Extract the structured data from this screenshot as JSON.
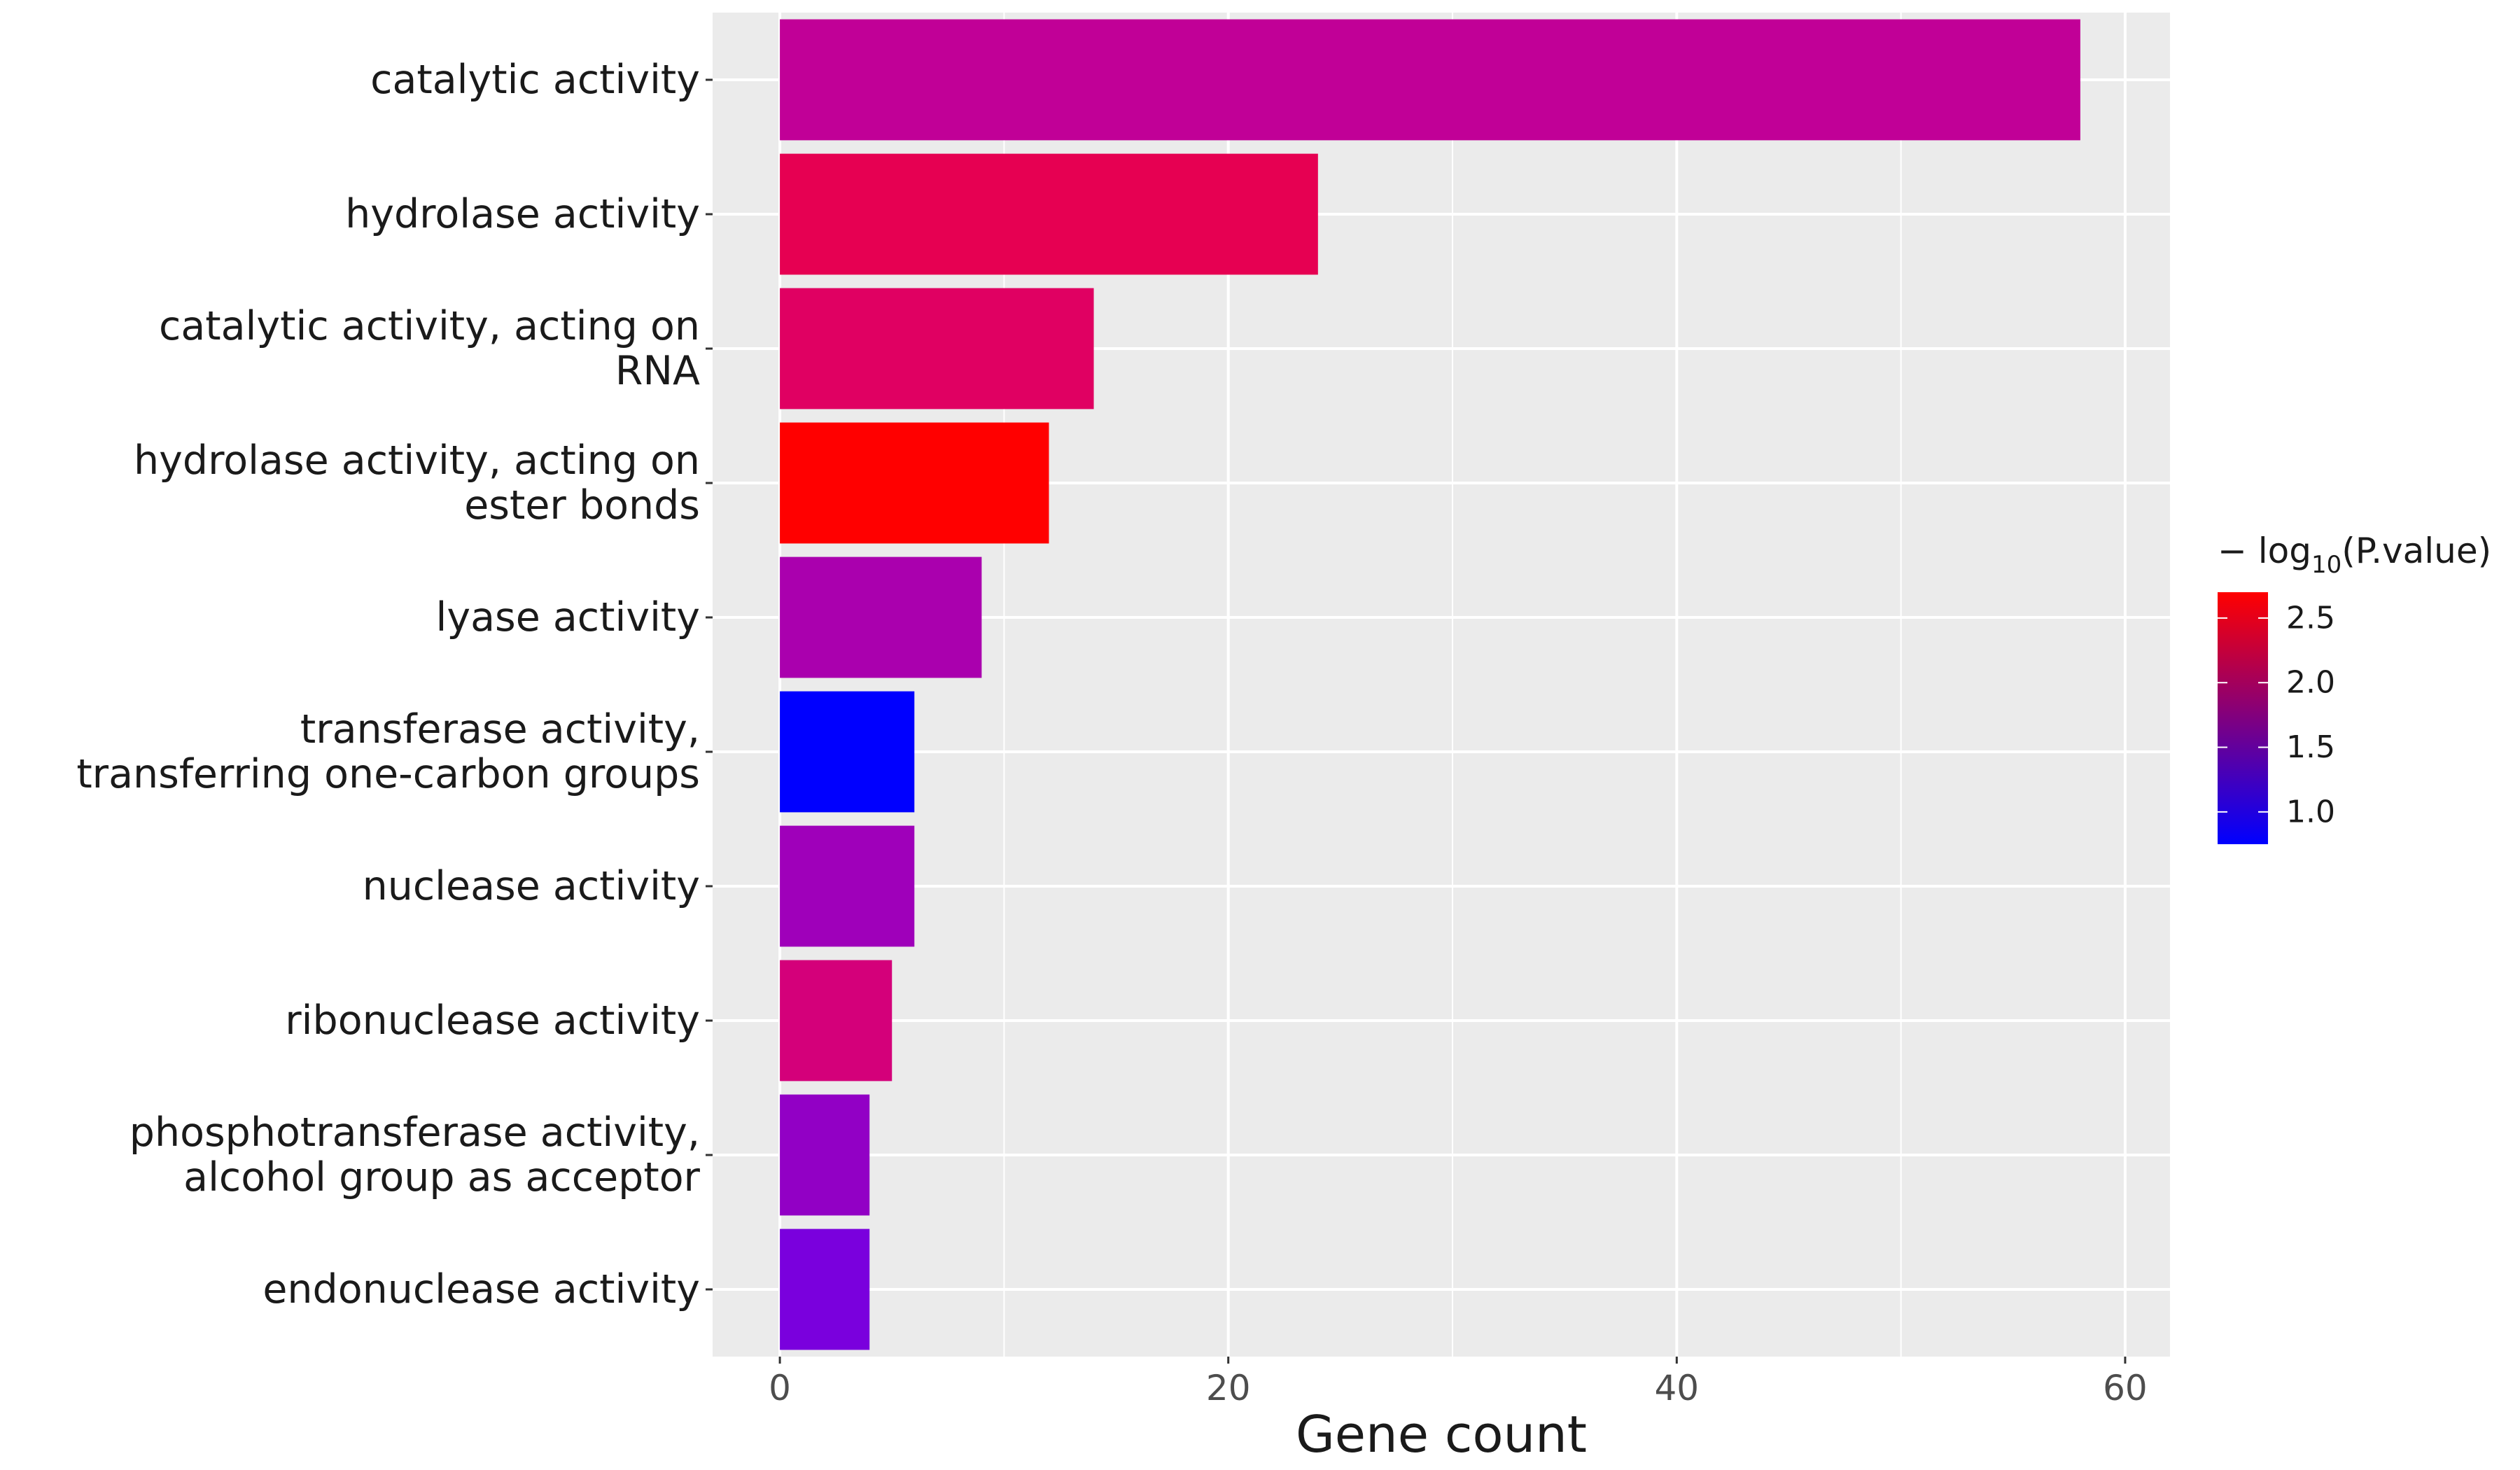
{
  "chart_data": {
    "type": "bar",
    "orientation": "horizontal",
    "categories": [
      [
        "catalytic activity"
      ],
      [
        "hydrolase activity"
      ],
      [
        "catalytic activity, acting on",
        "RNA"
      ],
      [
        "hydrolase activity, acting on",
        "ester bonds"
      ],
      [
        "lyase activity"
      ],
      [
        "transferase activity,",
        "transferring one-carbon groups"
      ],
      [
        "nuclease activity"
      ],
      [
        "ribonuclease activity"
      ],
      [
        "phosphotransferase activity,",
        "alcohol group as acceptor"
      ],
      [
        "endonuclease activity"
      ]
    ],
    "values": [
      58,
      24,
      14,
      12,
      9,
      6,
      6,
      5,
      4,
      4
    ],
    "colors": [
      "#c10097",
      "#e60052",
      "#e00062",
      "#ff0000",
      "#aa00ae",
      "#0000ff",
      "#9f00ba",
      "#d4007a",
      "#9200c5",
      "#7a00dd"
    ],
    "color_values": [
      1.6,
      2.3,
      2.2,
      2.7,
      1.4,
      0.75,
      1.3,
      2.0,
      1.2,
      1.05
    ],
    "xlabel": "Gene count",
    "xlim": [
      -3,
      62
    ],
    "xticks": [
      0,
      20,
      40,
      60
    ],
    "grid": true,
    "legend": {
      "title_main": "− log",
      "title_sub": "10",
      "title_rest": "(P.value)",
      "placement": "right",
      "range": [
        0.75,
        2.7
      ],
      "ticks": [
        1.0,
        1.5,
        2.0,
        2.5
      ],
      "tick_labels": [
        "1.0",
        "1.5",
        "2.0",
        "2.5"
      ],
      "color_low": "#0000ff",
      "color_high": "#ff0000"
    }
  }
}
